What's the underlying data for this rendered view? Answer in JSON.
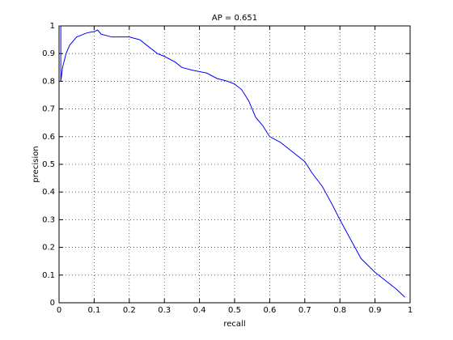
{
  "chart_data": {
    "type": "line",
    "title": "AP = 0.651",
    "x_label": "recall",
    "y_label": "precision",
    "x": [
      0.0,
      0.005,
      0.005,
      0.01,
      0.02,
      0.03,
      0.05,
      0.08,
      0.1,
      0.11,
      0.12,
      0.15,
      0.2,
      0.23,
      0.25,
      0.28,
      0.3,
      0.33,
      0.35,
      0.38,
      0.42,
      0.45,
      0.48,
      0.5,
      0.52,
      0.54,
      0.56,
      0.58,
      0.6,
      0.63,
      0.66,
      0.68,
      0.7,
      0.72,
      0.75,
      0.78,
      0.8,
      0.83,
      0.86,
      0.9,
      0.93,
      0.96,
      0.985
    ],
    "values": [
      1.0,
      1.0,
      0.8,
      0.85,
      0.9,
      0.93,
      0.96,
      0.975,
      0.98,
      0.985,
      0.97,
      0.96,
      0.96,
      0.95,
      0.93,
      0.9,
      0.89,
      0.87,
      0.85,
      0.84,
      0.83,
      0.81,
      0.8,
      0.79,
      0.77,
      0.73,
      0.67,
      0.64,
      0.6,
      0.58,
      0.55,
      0.53,
      0.51,
      0.47,
      0.42,
      0.35,
      0.3,
      0.23,
      0.16,
      0.11,
      0.08,
      0.05,
      0.02
    ],
    "color": "#0000ff",
    "xlim": [
      0,
      1
    ],
    "ylim": [
      0,
      1
    ],
    "xticks": [
      0,
      0.1,
      0.2,
      0.3,
      0.4,
      0.5,
      0.6,
      0.7,
      0.8,
      0.9,
      1
    ],
    "yticks": [
      0,
      0.1,
      0.2,
      0.3,
      0.4,
      0.5,
      0.6,
      0.7,
      0.8,
      0.9,
      1
    ],
    "grid": true
  }
}
